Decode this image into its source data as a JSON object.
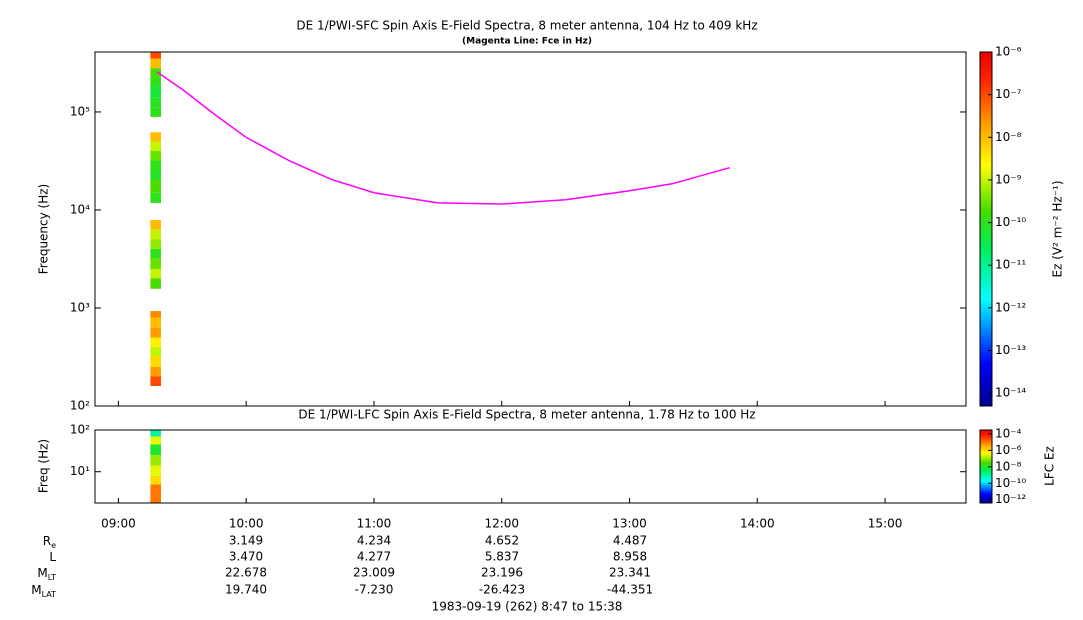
{
  "chart_data": [
    {
      "type": "spectrogram",
      "title": "DE 1/PWI-SFC  Spin Axis E-Field Spectra, 8 meter antenna, 104 Hz to 409 kHz",
      "subtitle": "(Magenta Line: Fce in Hz)",
      "ylabel": "Frequency (Hz)",
      "ylog": true,
      "xlim": [
        529,
        938
      ],
      "ylim": [
        100,
        409000
      ],
      "yticks": [
        {
          "value": 100,
          "label": "10²"
        },
        {
          "value": 1000,
          "label": "10³"
        },
        {
          "value": 10000,
          "label": "10⁴"
        },
        {
          "value": 100000,
          "label": "10⁵"
        }
      ],
      "time_bins": [
        555,
        560
      ],
      "freq_bins": [
        160,
        200,
        250,
        320,
        400,
        500,
        630,
        800,
        930,
        1570,
        2000,
        2500,
        3200,
        4000,
        5000,
        6300,
        7900,
        11800,
        15000,
        20000,
        25000,
        32000,
        40000,
        50000,
        62000,
        89000,
        112000,
        140000,
        180000,
        225000,
        280000,
        350000,
        409000
      ],
      "z": [
        1e-07,
        2e-08,
        5e-09,
        1e-09,
        3e-09,
        2e-08,
        1e-08,
        3e-08,
        null,
        2e-10,
        1e-09,
        3e-10,
        1e-10,
        5e-10,
        1e-09,
        1e-08,
        null,
        1e-10,
        2e-10,
        8e-11,
        1e-10,
        3e-10,
        1e-09,
        1e-08,
        null,
        1e-10,
        8e-11,
        5e-11,
        1e-10,
        2e-10,
        1e-08,
        1e-07
      ],
      "line": {
        "color": "#ff00ff",
        "x": [
          558,
          570,
          585,
          600,
          620,
          640,
          660,
          690,
          720,
          750,
          780,
          800,
          827
        ],
        "values": [
          257000,
          170000,
          95000,
          55000,
          32000,
          20500,
          15000,
          11800,
          11500,
          12700,
          15700,
          18500,
          27000
        ]
      },
      "colorbar": {
        "label": "Ez (V² m⁻² Hz⁻¹)",
        "zlim": [
          5e-15,
          1e-06
        ],
        "zticks": [
          {
            "value": 1e-06,
            "label": "10⁻⁶"
          },
          {
            "value": 1e-07,
            "label": "10⁻⁷"
          },
          {
            "value": 1e-08,
            "label": "10⁻⁸"
          },
          {
            "value": 1e-09,
            "label": "10⁻⁹"
          },
          {
            "value": 1e-10,
            "label": "10⁻¹⁰"
          },
          {
            "value": 1e-11,
            "label": "10⁻¹¹"
          },
          {
            "value": 1e-12,
            "label": "10⁻¹²"
          },
          {
            "value": 1e-13,
            "label": "10⁻¹³"
          },
          {
            "value": 1e-14,
            "label": "10⁻¹⁴"
          }
        ]
      }
    },
    {
      "type": "spectrogram",
      "title": "DE 1/PWI-LFC  Spin Axis E-Field Spectra, 8 meter antenna, 1.78 Hz to 100 Hz",
      "ylabel": "Freq (Hz)",
      "ylog": true,
      "xlim": [
        529,
        938
      ],
      "ylim": [
        1.78,
        100
      ],
      "yticks": [
        {
          "value": 10,
          "label": "10¹"
        },
        {
          "value": 100,
          "label": "10²"
        }
      ],
      "xticks": [
        {
          "value": 540,
          "label": "09:00"
        },
        {
          "value": 600,
          "label": "10:00"
        },
        {
          "value": 660,
          "label": "11:00"
        },
        {
          "value": 720,
          "label": "12:00"
        },
        {
          "value": 780,
          "label": "13:00"
        },
        {
          "value": 840,
          "label": "14:00"
        },
        {
          "value": 900,
          "label": "15:00"
        }
      ],
      "time_bins": [
        555,
        560
      ],
      "freq_bins": [
        1.78,
        3,
        5,
        8,
        14,
        25,
        45,
        70,
        100
      ],
      "z": [
        1e-05,
        1e-05,
        1e-06,
        3e-07,
        1e-07,
        1e-08,
        3e-07,
        1e-09
      ],
      "colorbar": {
        "label": "LFC Ez",
        "zlim": [
          4e-13,
          0.0003
        ],
        "zticks": [
          {
            "value": 0.0001,
            "label": "10⁻⁴"
          },
          {
            "value": 1e-06,
            "label": "10⁻⁶"
          },
          {
            "value": 1e-08,
            "label": "10⁻⁸"
          },
          {
            "value": 1e-10,
            "label": "10⁻¹⁰"
          },
          {
            "value": 1e-12,
            "label": "10⁻¹²"
          }
        ]
      }
    }
  ],
  "ephemeris": {
    "rows": [
      {
        "label": "R",
        "sub": "e",
        "values": [
          "3.149",
          "4.234",
          "4.652",
          "4.487"
        ]
      },
      {
        "label": "L",
        "sub": "",
        "values": [
          "3.470",
          "4.277",
          "5.837",
          "8.958"
        ]
      },
      {
        "label": "M",
        "sub": "LT",
        "values": [
          "22.678",
          "23.009",
          "23.196",
          "23.341"
        ]
      },
      {
        "label": "M",
        "sub": "LAT",
        "values": [
          "19.740",
          "-7.230",
          "-26.423",
          "-44.351"
        ]
      }
    ],
    "footer": "1983-09-19 (262) 8:47 to 15:38"
  }
}
